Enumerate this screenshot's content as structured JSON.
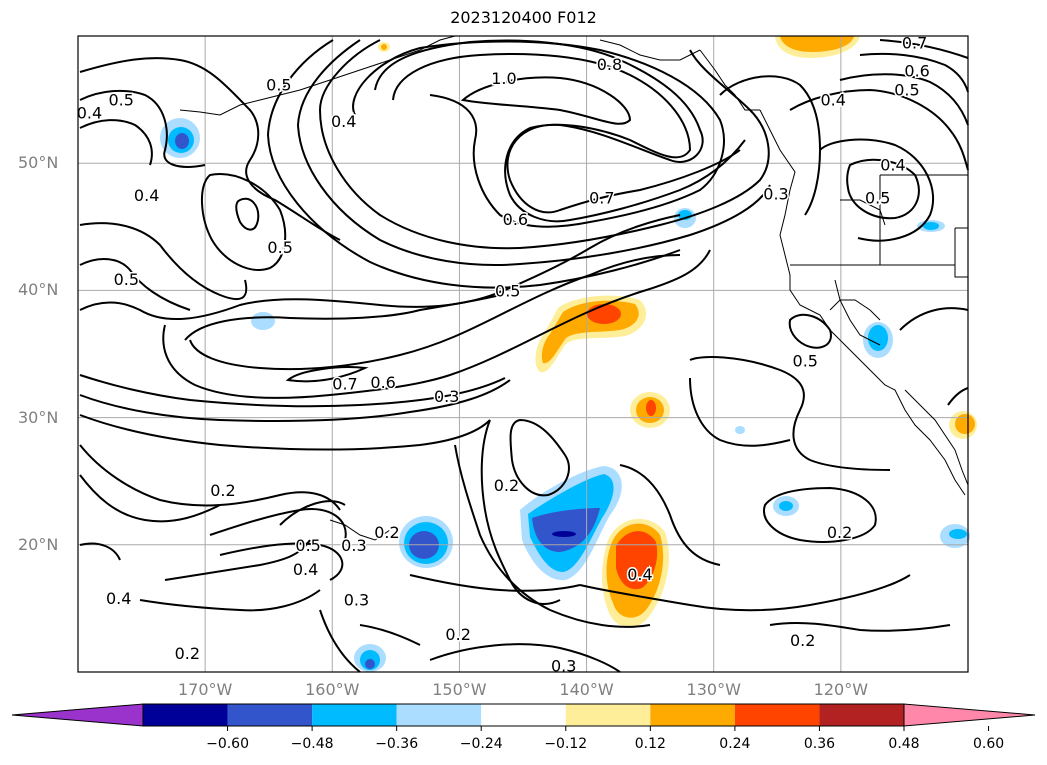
{
  "title": "2023120400 F012",
  "map": {
    "projection": "lat-lon",
    "extent": {
      "lon_min": -180,
      "lon_max": -110,
      "lat_min": 10,
      "lat_max": 60
    },
    "grid": true,
    "lat_labels": [
      {
        "lat": 50,
        "text": "50°N"
      },
      {
        "lat": 40,
        "text": "40°N"
      },
      {
        "lat": 30,
        "text": "30°N"
      },
      {
        "lat": 20,
        "text": "20°N"
      }
    ],
    "lon_labels": [
      {
        "lon": -170,
        "text": "170°W"
      },
      {
        "lon": -160,
        "text": "160°W"
      },
      {
        "lon": -150,
        "text": "150°W"
      },
      {
        "lon": -140,
        "text": "140°W"
      },
      {
        "lon": -130,
        "text": "130°W"
      },
      {
        "lon": -120,
        "text": "120°W"
      }
    ],
    "contour_labels": [
      {
        "text": "1.0",
        "lon": -146.5,
        "lat": 56.7
      },
      {
        "text": "0.8",
        "lon": -138.2,
        "lat": 57.8
      },
      {
        "text": "0.7",
        "lon": -114.2,
        "lat": 59.5
      },
      {
        "text": "0.6",
        "lon": -114.0,
        "lat": 57.3
      },
      {
        "text": "0.5",
        "lon": -114.8,
        "lat": 55.8
      },
      {
        "text": "0.4",
        "lon": -120.6,
        "lat": 55.0
      },
      {
        "text": "0.4",
        "lon": -115.9,
        "lat": 49.9
      },
      {
        "text": "0.5",
        "lon": -117.1,
        "lat": 47.3
      },
      {
        "text": "0.3",
        "lon": -125.1,
        "lat": 47.6
      },
      {
        "text": "0.7",
        "lon": -138.8,
        "lat": 47.3
      },
      {
        "text": "0.6",
        "lon": -145.6,
        "lat": 45.6
      },
      {
        "text": "0.5",
        "lon": -176.6,
        "lat": 55.0
      },
      {
        "text": "0.4",
        "lon": -179.1,
        "lat": 54.0
      },
      {
        "text": "0.5",
        "lon": -164.2,
        "lat": 56.2
      },
      {
        "text": "0.4",
        "lon": -159.1,
        "lat": 53.3
      },
      {
        "text": "0.4",
        "lon": -174.6,
        "lat": 47.5
      },
      {
        "text": "0.5",
        "lon": -164.1,
        "lat": 43.4
      },
      {
        "text": "0.5",
        "lon": -176.2,
        "lat": 40.9
      },
      {
        "text": "0.5",
        "lon": -146.2,
        "lat": 40.0
      },
      {
        "text": "0.5",
        "lon": -122.8,
        "lat": 34.5
      },
      {
        "text": "0.7",
        "lon": -159.0,
        "lat": 32.7
      },
      {
        "text": "0.6",
        "lon": -156.0,
        "lat": 32.8
      },
      {
        "text": "0.3",
        "lon": -151.0,
        "lat": 31.7
      },
      {
        "text": "0.2",
        "lon": -146.3,
        "lat": 24.7
      },
      {
        "text": "0.2",
        "lon": -168.6,
        "lat": 24.3
      },
      {
        "text": "0.2",
        "lon": -155.7,
        "lat": 21.0
      },
      {
        "text": "0.3",
        "lon": -158.3,
        "lat": 20.0
      },
      {
        "text": "0.5",
        "lon": -161.9,
        "lat": 20.0
      },
      {
        "text": "0.4",
        "lon": -162.1,
        "lat": 18.1
      },
      {
        "text": "0.4",
        "lon": -176.8,
        "lat": 15.8
      },
      {
        "text": "0.3",
        "lon": -158.1,
        "lat": 15.7
      },
      {
        "text": "0.4",
        "lon": -135.8,
        "lat": 17.7
      },
      {
        "text": "0.2",
        "lon": -120.1,
        "lat": 21.0
      },
      {
        "text": "0.2",
        "lon": -150.1,
        "lat": 13.0
      },
      {
        "text": "0.2",
        "lon": -123.0,
        "lat": 12.5
      },
      {
        "text": "0.2",
        "lon": -171.4,
        "lat": 11.5
      },
      {
        "text": "0.3",
        "lon": -141.8,
        "lat": 10.5
      }
    ]
  },
  "colorbar": {
    "colors": [
      "#9933cc",
      "#000099",
      "#3355cc",
      "#00bbff",
      "#aaddff",
      "#ffffff",
      "#ffee99",
      "#ffaa00",
      "#ff4400",
      "#b22222",
      "#ff88aa"
    ],
    "extend": "both",
    "ticks": [
      "−0.60",
      "−0.48",
      "−0.36",
      "−0.24",
      "−0.12",
      "0.12",
      "0.24",
      "0.36",
      "0.48",
      "0.60"
    ]
  }
}
